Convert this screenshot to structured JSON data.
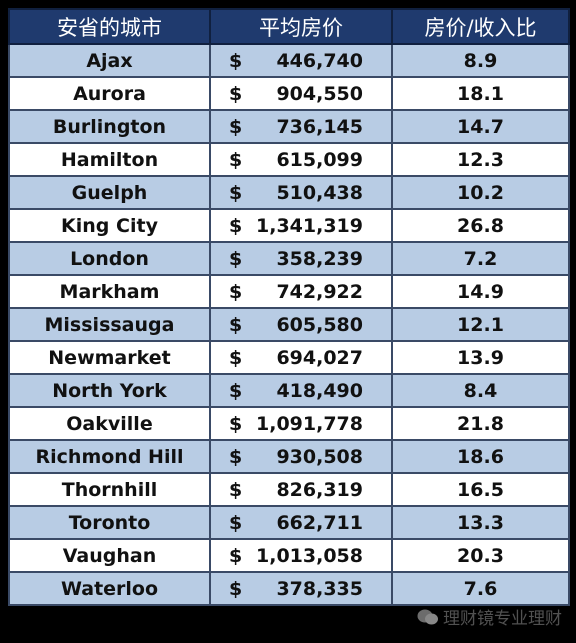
{
  "table": {
    "header": [
      "安省的城市",
      "平均房价",
      "房价/收入比"
    ],
    "rows": [
      [
        "Ajax",
        "$",
        "446,740",
        8.9
      ],
      [
        "Aurora",
        "$",
        "904,550",
        18.1
      ],
      [
        "Burlington",
        "$",
        "736,145",
        14.7
      ],
      [
        "Hamilton",
        "$",
        "615,099",
        12.3
      ],
      [
        "Guelph",
        "$",
        "510,438",
        10.2
      ],
      [
        "King City",
        "$",
        "1,341,319",
        26.8
      ],
      [
        "London",
        "$",
        "358,239",
        7.2
      ],
      [
        "Markham",
        "$",
        "742,922",
        14.9
      ],
      [
        "Mississauga",
        "$",
        "605,580",
        12.1
      ],
      [
        "Newmarket",
        "$",
        "694,027",
        13.9
      ],
      [
        "North York",
        "$",
        "418,490",
        8.4
      ],
      [
        "Oakville",
        "$",
        "1,091,778",
        21.8
      ],
      [
        "Richmond Hill",
        "$",
        "930,508",
        18.6
      ],
      [
        "Thornhill",
        "$",
        "826,319",
        16.5
      ],
      [
        "Toronto",
        "$",
        "662,711",
        13.3
      ],
      [
        "Vaughan",
        "$",
        "1,013,058",
        20.3
      ],
      [
        "Waterloo",
        "$",
        "378,335",
        7.6
      ]
    ]
  },
  "watermark": "理财镜专业理财"
}
